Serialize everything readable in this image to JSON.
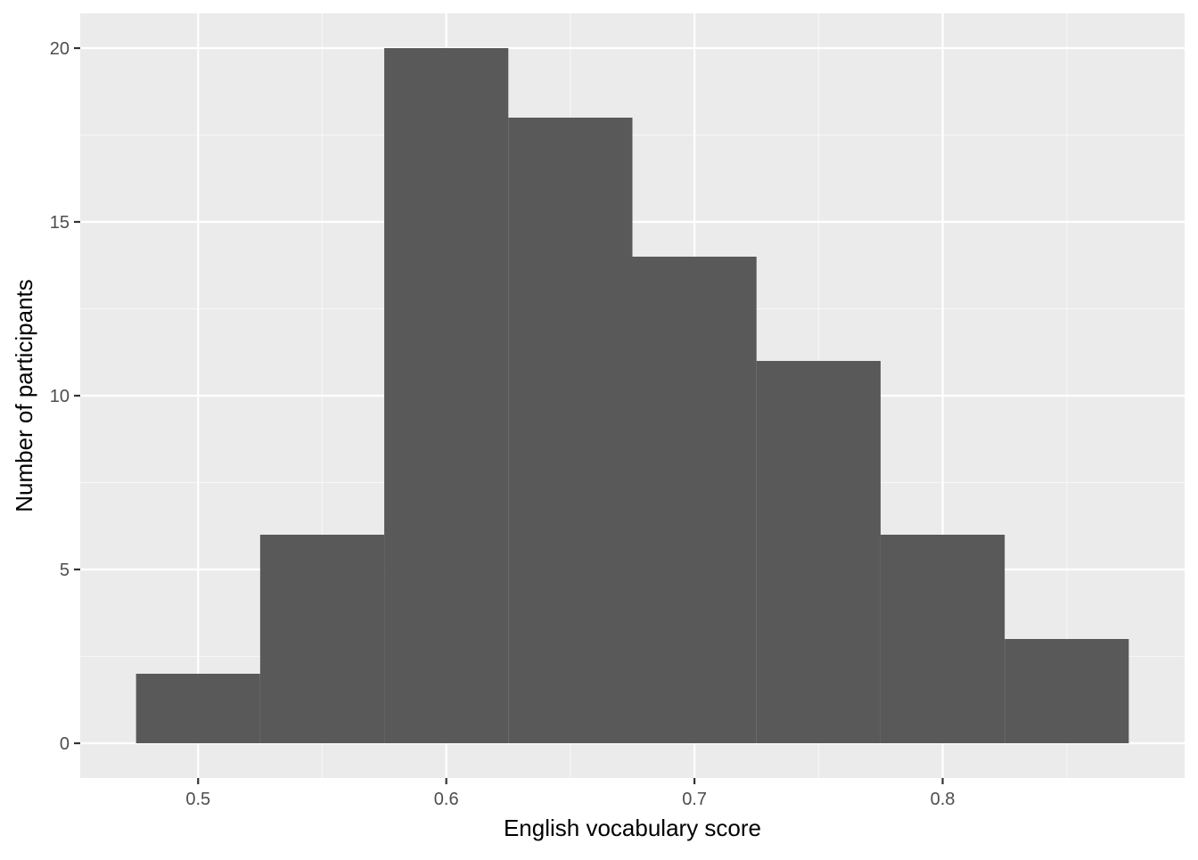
{
  "chart_data": {
    "type": "bar",
    "subtype": "histogram",
    "title": "",
    "xlabel": "English vocabulary score",
    "ylabel": "Number of participants",
    "bins": [
      {
        "x_start": 0.475,
        "x_end": 0.525,
        "count": 2
      },
      {
        "x_start": 0.525,
        "x_end": 0.575,
        "count": 6
      },
      {
        "x_start": 0.575,
        "x_end": 0.625,
        "count": 20
      },
      {
        "x_start": 0.625,
        "x_end": 0.675,
        "count": 18
      },
      {
        "x_start": 0.675,
        "x_end": 0.725,
        "count": 14
      },
      {
        "x_start": 0.725,
        "x_end": 0.775,
        "count": 11
      },
      {
        "x_start": 0.775,
        "x_end": 0.825,
        "count": 6
      },
      {
        "x_start": 0.825,
        "x_end": 0.875,
        "count": 3
      }
    ],
    "xlim": [
      0.4525,
      0.8975
    ],
    "ylim": [
      -1,
      21
    ],
    "x_ticks": [
      0.5,
      0.6,
      0.7,
      0.8
    ],
    "x_tick_labels": [
      "0.5",
      "0.6",
      "0.7",
      "0.8"
    ],
    "y_ticks": [
      0,
      5,
      10,
      15,
      20
    ],
    "y_tick_labels": [
      "0",
      "5",
      "10",
      "15",
      "20"
    ],
    "x_minor_ticks": [
      0.55,
      0.65,
      0.75,
      0.85
    ],
    "y_minor_ticks": [
      2.5,
      7.5,
      12.5,
      17.5
    ],
    "grid": true,
    "legend": "none",
    "colors": {
      "panel_background": "#ebebeb",
      "grid_major": "#ffffff",
      "grid_minor": "#f7f7f7",
      "bar_fill": "#595959",
      "tick_text": "#4d4d4d",
      "tick_mark": "#333333",
      "axis_title": "#000000"
    }
  }
}
